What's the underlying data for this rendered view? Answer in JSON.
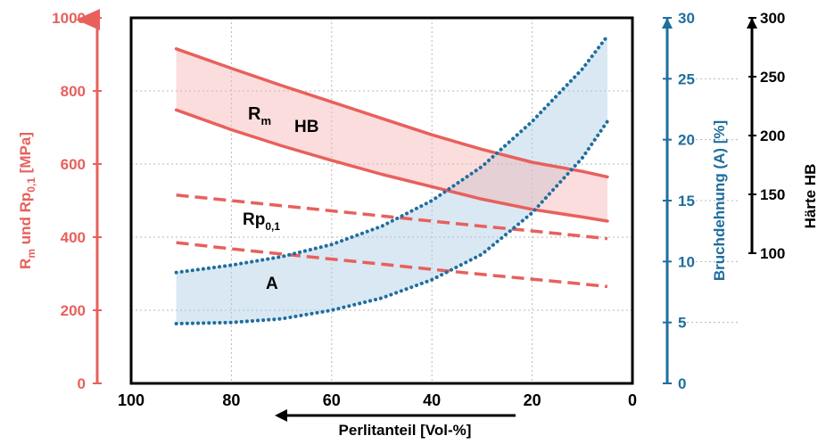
{
  "chart_data": {
    "type": "line",
    "title": "",
    "xlabel": "Perlitanteil [Vol-%]",
    "xlim": [
      100,
      0
    ],
    "x_ticks": [
      "100",
      "80",
      "60",
      "40",
      "20",
      "0"
    ],
    "left_axis": {
      "label_main": "R",
      "label_sub": "m",
      "label_mid": " und Rp",
      "label_sub2": "0,1",
      "label_tail": " [MPa]",
      "ylim": [
        0,
        1000
      ],
      "ticks": [
        "0",
        "200",
        "400",
        "600",
        "800",
        "1000"
      ],
      "color": "#e8605c"
    },
    "elongation_axis": {
      "label": "Bruchdehnung (A) [%]",
      "ylim": [
        0,
        30
      ],
      "ticks": [
        "0",
        "5",
        "10",
        "15",
        "20",
        "25",
        "30"
      ],
      "color": "#1f6e9e"
    },
    "hardness_axis": {
      "label": "Härte HB",
      "ylim": [
        100,
        300
      ],
      "ticks": [
        "100",
        "150",
        "200",
        "250",
        "300"
      ],
      "color": "#000000"
    },
    "grid": true,
    "x": [
      91,
      80,
      70,
      60,
      50,
      40,
      30,
      20,
      10,
      5
    ],
    "series": [
      {
        "name": "Rm upper",
        "axis": "left",
        "style": "solid",
        "color": "#e8605c",
        "values": [
          915,
          862,
          815,
          770,
          725,
          680,
          640,
          605,
          580,
          565
        ]
      },
      {
        "name": "Rm lower",
        "axis": "left",
        "style": "solid",
        "color": "#e8605c",
        "values": [
          748,
          694,
          650,
          610,
          572,
          538,
          504,
          476,
          455,
          444
        ]
      },
      {
        "name": "Rp0,1 upper",
        "axis": "left",
        "style": "dashed",
        "color": "#e8605c",
        "values": [
          515,
          500,
          486,
          472,
          458,
          444,
          430,
          417,
          403,
          396
        ]
      },
      {
        "name": "Rp0,1 lower",
        "axis": "left",
        "style": "dashed",
        "color": "#e8605c",
        "values": [
          385,
          368,
          354,
          340,
          326,
          312,
          298,
          285,
          272,
          265
        ]
      },
      {
        "name": "A upper",
        "axis": "elongation",
        "style": "dotted",
        "color": "#1f6e9e",
        "values": [
          9.1,
          9.7,
          10.4,
          11.4,
          12.9,
          15.0,
          17.8,
          21.5,
          25.8,
          28.5
        ]
      },
      {
        "name": "A lower",
        "axis": "elongation",
        "style": "dotted",
        "color": "#1f6e9e",
        "values": [
          4.9,
          5.0,
          5.3,
          6.0,
          7.0,
          8.5,
          10.6,
          14.0,
          18.5,
          21.5
        ]
      }
    ],
    "annotations": {
      "rm_main": "R",
      "rm_sub": "m",
      "hb": "HB",
      "rp_main": "Rp",
      "rp_sub": "0,1",
      "a": "A"
    }
  }
}
